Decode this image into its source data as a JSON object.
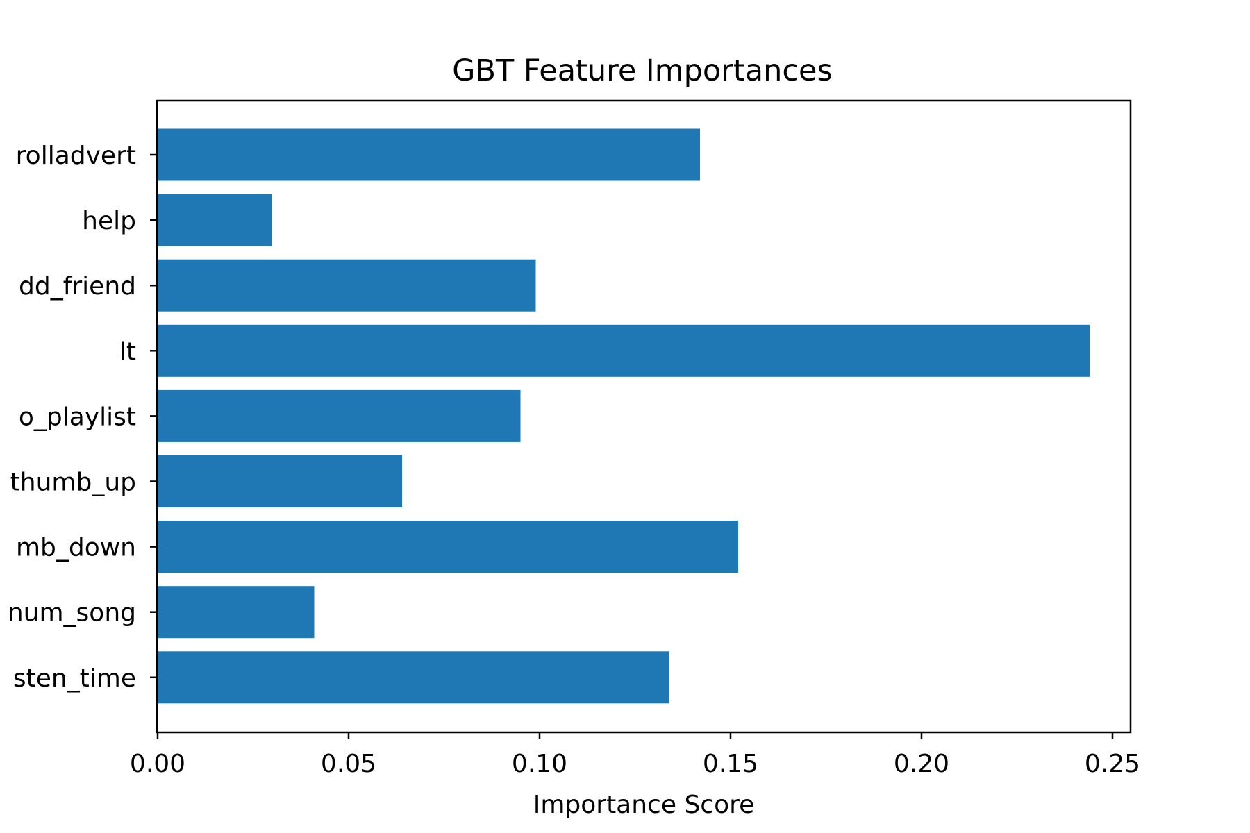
{
  "chart_data": {
    "type": "bar",
    "orientation": "horizontal",
    "title": "GBT Feature Importances",
    "xlabel": "Importance Score",
    "ylabel": "",
    "xlim": [
      0.0,
      0.255
    ],
    "xticks": [
      "0.00",
      "0.05",
      "0.10",
      "0.15",
      "0.20",
      "0.25"
    ],
    "xtick_values": [
      0.0,
      0.05,
      0.1,
      0.15,
      0.2,
      0.25
    ],
    "categories": [
      "rolladvert",
      "help",
      "dd_friend",
      "lt",
      "o_playlist",
      "thumb_up",
      "mb_down",
      "num_song",
      "sten_time"
    ],
    "values": [
      0.142,
      0.03,
      0.099,
      0.244,
      0.095,
      0.064,
      0.152,
      0.041,
      0.134
    ],
    "bar_color": "#1f77b4",
    "grid": false,
    "legend": "none"
  }
}
